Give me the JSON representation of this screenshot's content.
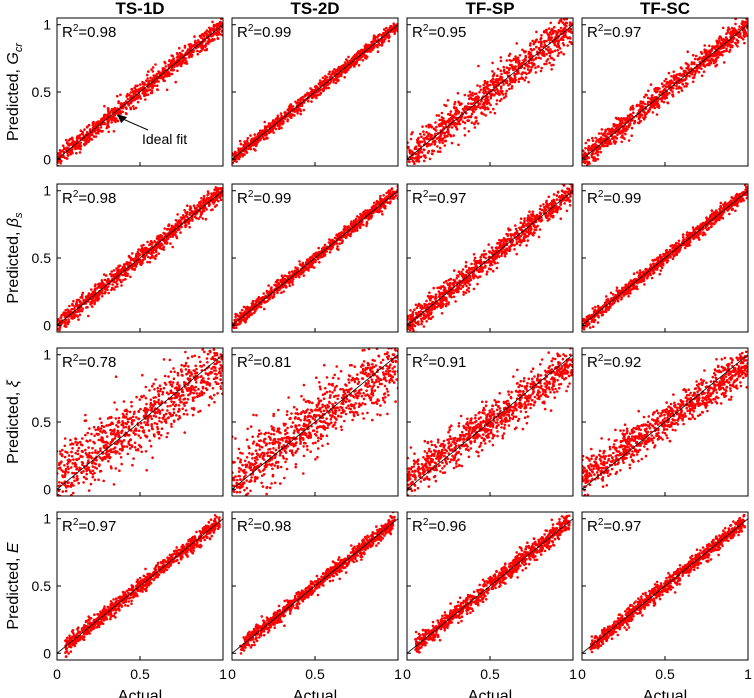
{
  "chart_data": {
    "type": "scatter",
    "columns": [
      "TS-1D",
      "TS-2D",
      "TF-SP",
      "TF-SC"
    ],
    "xlabel": "Actual",
    "rows": [
      {
        "ylabel_prefix": "Predicted,",
        "symbol": "G",
        "subscript": "cr",
        "r2": [
          "0.98",
          "0.99",
          "0.95",
          "0.97"
        ],
        "noise": [
          0.035,
          0.025,
          0.07,
          0.045
        ]
      },
      {
        "ylabel_prefix": "Predicted,",
        "symbol": "β",
        "subscript": "s",
        "r2": [
          "0.98",
          "0.99",
          "0.97",
          "0.99"
        ],
        "noise": [
          0.035,
          0.025,
          0.045,
          0.025
        ]
      },
      {
        "ylabel_prefix": "Predicted,",
        "symbol": "ξ",
        "subscript": "",
        "r2": [
          "0.78",
          "0.81",
          "0.91",
          "0.92"
        ],
        "noise": [
          0.12,
          0.11,
          0.075,
          0.07
        ]
      },
      {
        "ylabel_prefix": "Predicted,",
        "symbol": "E",
        "subscript": "",
        "r2": [
          "0.97",
          "0.98",
          "0.96",
          "0.97"
        ],
        "noise": [
          0.03,
          0.028,
          0.035,
          0.03
        ]
      }
    ],
    "x_ticks": [
      [
        "0",
        "0.5",
        "1"
      ],
      [
        "0",
        "0.5",
        "1"
      ],
      [
        "0",
        "0.5",
        "1"
      ],
      [
        "0",
        "0.5",
        "1"
      ]
    ],
    "y_ticks": [
      "0",
      "0.5",
      "1"
    ],
    "xlim": [
      0,
      1
    ],
    "ylim": [
      -0.05,
      1.05
    ],
    "r2_prefix": "R",
    "r2_sup": "2",
    "ideal_fit_label": "Ideal fit",
    "ideal_fit_point": [
      0.35,
      0.35
    ],
    "points_per_panel": 900,
    "marker_color": "#ff0000",
    "line_color": "#000000",
    "grid": false
  }
}
